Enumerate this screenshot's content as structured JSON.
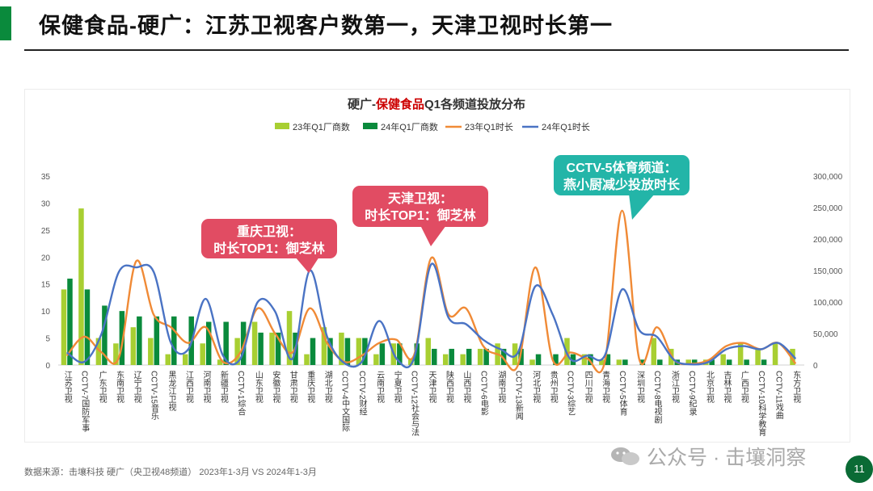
{
  "header": {
    "title": "保健食品-硬广：江苏卫视客户数第一，天津卫视时长第一"
  },
  "colors": {
    "accent": "#0a8a3c",
    "bar_2023": "#a8cf32",
    "bar_2024": "#0a8a3c",
    "line_2023": "#f08a36",
    "line_2024": "#4a73c4",
    "callout_red": "#e14c63",
    "callout_teal": "#23b5a8",
    "title_highlight": "#cc0000"
  },
  "chart_data": {
    "type": "bar+line",
    "title_prefix": "硬广-",
    "title_highlight": "保健食品",
    "title_suffix": "Q1各频道投放分布",
    "categories": [
      "江苏卫视",
      "CCTV-7国防军事",
      "广东卫视",
      "东南卫视",
      "辽宁卫视",
      "CCTV-15音乐",
      "黑龙江卫视",
      "江西卫视",
      "河南卫视",
      "新疆卫视",
      "CCTV-1综合",
      "山东卫视",
      "安徽卫视",
      "甘肃卫视",
      "重庆卫视",
      "湖北卫视",
      "CCTV-4中文国际",
      "CCTV-2财经",
      "云南卫视",
      "宁夏卫视",
      "CCTV-12社会与法",
      "天津卫视",
      "陕西卫视",
      "山西卫视",
      "CCTV-6电影",
      "湖南卫视",
      "CCTV-13新闻",
      "河北卫视",
      "贵州卫视",
      "CCTV-3综艺",
      "四川卫视",
      "青海卫视",
      "CCTV-5体育",
      "深圳卫视",
      "CCTV-8电视剧",
      "浙江卫视",
      "CCTV-9纪录",
      "北京卫视",
      "吉林卫视",
      "广西卫视",
      "CCTV-10科学教育",
      "CCTV-11戏曲",
      "东方卫视"
    ],
    "series": [
      {
        "name": "23年Q1厂商数",
        "kind": "bar",
        "axis": "left",
        "values": [
          14,
          29,
          5,
          4,
          7,
          5,
          2,
          2,
          4,
          1,
          5,
          8,
          6,
          10,
          2,
          7,
          6,
          5,
          2,
          4,
          1,
          5,
          2,
          2,
          3,
          4,
          4,
          1,
          0,
          5,
          2,
          1,
          1,
          0,
          5,
          3,
          1,
          1,
          2,
          4,
          3,
          4,
          3
        ]
      },
      {
        "name": "24年Q1厂商数",
        "kind": "bar",
        "axis": "left",
        "values": [
          16,
          14,
          11,
          10,
          9,
          9,
          9,
          9,
          8,
          8,
          8,
          6,
          6,
          6,
          5,
          5,
          5,
          5,
          4,
          4,
          4,
          3,
          3,
          3,
          3,
          3,
          3,
          2,
          2,
          2,
          2,
          2,
          1,
          1,
          1,
          1,
          1,
          1,
          1,
          1,
          1,
          0,
          0
        ]
      },
      {
        "name": "23年Q1时长",
        "kind": "line",
        "axis": "right",
        "values": [
          15000,
          45000,
          20000,
          12000,
          165000,
          80000,
          60000,
          35000,
          60000,
          5000,
          20000,
          90000,
          50000,
          20000,
          90000,
          35000,
          5000,
          15000,
          35000,
          40000,
          15000,
          170000,
          80000,
          90000,
          30000,
          15000,
          0,
          155000,
          8000,
          20000,
          10000,
          5000,
          245000,
          8000,
          60000,
          8000,
          2000,
          8000,
          30000,
          35000,
          25000,
          35000,
          2000
        ]
      },
      {
        "name": "24年Q1时长",
        "kind": "line",
        "axis": "right",
        "values": [
          20000,
          5000,
          50000,
          148000,
          155000,
          148000,
          35000,
          25000,
          105000,
          15000,
          10000,
          100000,
          85000,
          10000,
          150000,
          45000,
          3000,
          5000,
          70000,
          10000,
          10000,
          160000,
          75000,
          65000,
          40000,
          25000,
          20000,
          125000,
          80000,
          10000,
          15000,
          15000,
          120000,
          55000,
          45000,
          8000,
          1000,
          5000,
          25000,
          30000,
          25000,
          35000,
          10000
        ]
      }
    ],
    "y_left": {
      "min": 0,
      "max": 35,
      "ticks": [
        "0",
        "5",
        "10",
        "15",
        "20",
        "25",
        "30",
        "35"
      ]
    },
    "y_right": {
      "min": 0,
      "max": 300000,
      "ticks": [
        "0",
        "50,000",
        "100,000",
        "150,000",
        "200,000",
        "250,000",
        "300,000"
      ]
    },
    "legend_position": "top-center",
    "grid": false
  },
  "callouts": {
    "chongqing": {
      "line1": "重庆卫视：",
      "line2": "时长TOP1：御芝林"
    },
    "tianjin": {
      "line1": "天津卫视：",
      "line2": "时长TOP1：御芝林"
    },
    "cctv5": {
      "line1": "CCTV-5体育频道：",
      "line2": "燕小厨减少投放时长"
    }
  },
  "footer": {
    "source": "数据来源：击壤科技 硬广（央卫视48频道） 2023年1-3月 VS 2024年1-3月",
    "watermark": "公众号 · 击壤洞察",
    "page_number": "11"
  }
}
